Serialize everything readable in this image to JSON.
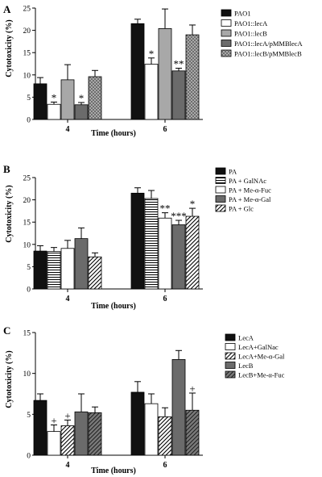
{
  "colors": {
    "black": "#111111",
    "white": "#ffffff",
    "light_gray": "#a8a8a8",
    "dark_gray": "#6b6b6b",
    "mid_gray": "#8a8a8a",
    "stroke": "#000000"
  },
  "chart_data": [
    {
      "panel_label": "A",
      "type": "bar",
      "xlabel": "Time (hours)",
      "ylabel": "Cytotoxicity (%)",
      "ylim": [
        0,
        25
      ],
      "yticks": [
        0,
        5,
        10,
        15,
        20,
        25
      ],
      "categories": [
        "4",
        "6"
      ],
      "legend_position": "right",
      "series": [
        {
          "name": "PAO1",
          "fill": "black",
          "values": [
            8.0,
            21.5
          ],
          "errors": [
            1.4,
            1.0
          ],
          "annotations": [
            "",
            ""
          ]
        },
        {
          "name": "PAO1::lecA",
          "fill": "white",
          "values": [
            3.4,
            12.4
          ],
          "errors": [
            0.5,
            1.4
          ],
          "annotations": [
            "*",
            "*"
          ]
        },
        {
          "name": "PAO1::lecB",
          "fill": "light_gray",
          "values": [
            8.9,
            20.4
          ],
          "errors": [
            3.4,
            4.4
          ],
          "annotations": [
            "",
            ""
          ]
        },
        {
          "name": "PAO1::lecA/pMMBlecA",
          "fill": "dark_gray",
          "values": [
            3.3,
            10.9
          ],
          "errors": [
            0.5,
            0.6
          ],
          "annotations": [
            "*",
            "**"
          ]
        },
        {
          "name": "PAO1::lecB/pMMBlecB",
          "fill": "crosshatch",
          "values": [
            9.6,
            19.0
          ],
          "errors": [
            1.4,
            2.2
          ],
          "annotations": [
            "",
            ""
          ]
        }
      ]
    },
    {
      "panel_label": "B",
      "type": "bar",
      "xlabel": "Time (hours)",
      "ylabel": "Cytotoxicity (%)",
      "ylim": [
        0,
        25
      ],
      "yticks": [
        0,
        5,
        10,
        15,
        20,
        25
      ],
      "categories": [
        "4",
        "6"
      ],
      "legend_position": "right",
      "series": [
        {
          "name": "PA",
          "fill": "black",
          "values": [
            8.5,
            21.5
          ],
          "errors": [
            1.2,
            1.2
          ],
          "annotations": [
            "",
            ""
          ]
        },
        {
          "name": "PA + GalNAc",
          "fill": "hlines",
          "values": [
            8.4,
            20.3
          ],
          "errors": [
            0.9,
            1.8
          ],
          "annotations": [
            "",
            ""
          ]
        },
        {
          "name": "PA + Me-α-Fuc",
          "fill": "white",
          "values": [
            9.1,
            15.9
          ],
          "errors": [
            1.8,
            1.2
          ],
          "annotations": [
            "",
            "**"
          ]
        },
        {
          "name": "PA + Me-α-Gal",
          "fill": "dark_gray",
          "values": [
            11.3,
            14.4
          ],
          "errors": [
            2.4,
            1.0
          ],
          "annotations": [
            "",
            "***"
          ]
        },
        {
          "name": "PA + Glc",
          "fill": "diag",
          "values": [
            7.2,
            16.3
          ],
          "errors": [
            0.9,
            1.8
          ],
          "annotations": [
            "",
            "*"
          ]
        }
      ]
    },
    {
      "panel_label": "C",
      "type": "bar",
      "xlabel": "Time (hours)",
      "ylabel": "Cytotoxicity (%)",
      "ylim": [
        0,
        15
      ],
      "yticks": [
        0,
        5,
        10,
        15
      ],
      "categories": [
        "4",
        "6"
      ],
      "legend_position": "right",
      "series": [
        {
          "name": "LecA",
          "fill": "black",
          "values": [
            6.7,
            7.7
          ],
          "errors": [
            0.8,
            1.3
          ],
          "annotations": [
            "",
            ""
          ]
        },
        {
          "name": "LecA+GalNac",
          "fill": "white",
          "values": [
            2.9,
            6.3
          ],
          "errors": [
            0.8,
            1.2
          ],
          "annotations": [
            "+",
            ""
          ]
        },
        {
          "name": "LecA+Me-α-Gal",
          "fill": "diag",
          "values": [
            3.6,
            4.7
          ],
          "errors": [
            0.7,
            1.1
          ],
          "annotations": [
            "+",
            ""
          ]
        },
        {
          "name": "LecB",
          "fill": "dark_gray",
          "values": [
            5.3,
            11.7
          ],
          "errors": [
            2.2,
            1.1
          ],
          "annotations": [
            "",
            ""
          ]
        },
        {
          "name": "LecB+Me-α-Fuc",
          "fill": "diag_gray",
          "values": [
            5.2,
            5.5
          ],
          "errors": [
            0.7,
            2.1
          ],
          "annotations": [
            "",
            "+"
          ]
        }
      ]
    }
  ]
}
